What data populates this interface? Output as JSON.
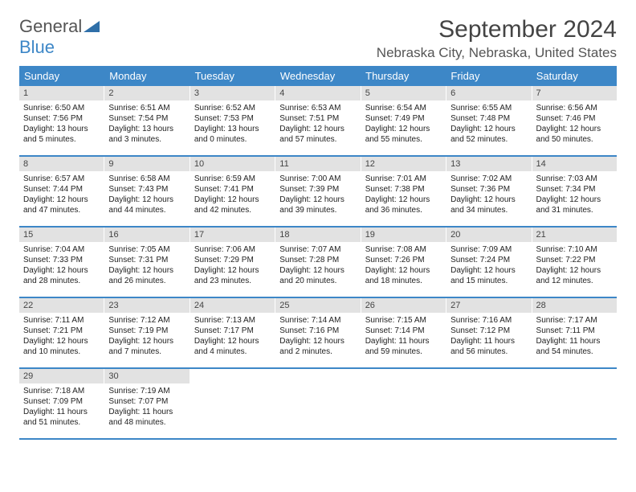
{
  "brand": {
    "g": "General",
    "b": "Blue"
  },
  "title": "September 2024",
  "location": "Nebraska City, Nebraska, United States",
  "colors": {
    "accent": "#3d87c7",
    "dayHeaderBg": "#e2e2e2"
  },
  "dow": [
    "Sunday",
    "Monday",
    "Tuesday",
    "Wednesday",
    "Thursday",
    "Friday",
    "Saturday"
  ],
  "weeks": [
    [
      {
        "n": "1",
        "sr": "Sunrise: 6:50 AM",
        "ss": "Sunset: 7:56 PM",
        "d1": "Daylight: 13 hours",
        "d2": "and 5 minutes."
      },
      {
        "n": "2",
        "sr": "Sunrise: 6:51 AM",
        "ss": "Sunset: 7:54 PM",
        "d1": "Daylight: 13 hours",
        "d2": "and 3 minutes."
      },
      {
        "n": "3",
        "sr": "Sunrise: 6:52 AM",
        "ss": "Sunset: 7:53 PM",
        "d1": "Daylight: 13 hours",
        "d2": "and 0 minutes."
      },
      {
        "n": "4",
        "sr": "Sunrise: 6:53 AM",
        "ss": "Sunset: 7:51 PM",
        "d1": "Daylight: 12 hours",
        "d2": "and 57 minutes."
      },
      {
        "n": "5",
        "sr": "Sunrise: 6:54 AM",
        "ss": "Sunset: 7:49 PM",
        "d1": "Daylight: 12 hours",
        "d2": "and 55 minutes."
      },
      {
        "n": "6",
        "sr": "Sunrise: 6:55 AM",
        "ss": "Sunset: 7:48 PM",
        "d1": "Daylight: 12 hours",
        "d2": "and 52 minutes."
      },
      {
        "n": "7",
        "sr": "Sunrise: 6:56 AM",
        "ss": "Sunset: 7:46 PM",
        "d1": "Daylight: 12 hours",
        "d2": "and 50 minutes."
      }
    ],
    [
      {
        "n": "8",
        "sr": "Sunrise: 6:57 AM",
        "ss": "Sunset: 7:44 PM",
        "d1": "Daylight: 12 hours",
        "d2": "and 47 minutes."
      },
      {
        "n": "9",
        "sr": "Sunrise: 6:58 AM",
        "ss": "Sunset: 7:43 PM",
        "d1": "Daylight: 12 hours",
        "d2": "and 44 minutes."
      },
      {
        "n": "10",
        "sr": "Sunrise: 6:59 AM",
        "ss": "Sunset: 7:41 PM",
        "d1": "Daylight: 12 hours",
        "d2": "and 42 minutes."
      },
      {
        "n": "11",
        "sr": "Sunrise: 7:00 AM",
        "ss": "Sunset: 7:39 PM",
        "d1": "Daylight: 12 hours",
        "d2": "and 39 minutes."
      },
      {
        "n": "12",
        "sr": "Sunrise: 7:01 AM",
        "ss": "Sunset: 7:38 PM",
        "d1": "Daylight: 12 hours",
        "d2": "and 36 minutes."
      },
      {
        "n": "13",
        "sr": "Sunrise: 7:02 AM",
        "ss": "Sunset: 7:36 PM",
        "d1": "Daylight: 12 hours",
        "d2": "and 34 minutes."
      },
      {
        "n": "14",
        "sr": "Sunrise: 7:03 AM",
        "ss": "Sunset: 7:34 PM",
        "d1": "Daylight: 12 hours",
        "d2": "and 31 minutes."
      }
    ],
    [
      {
        "n": "15",
        "sr": "Sunrise: 7:04 AM",
        "ss": "Sunset: 7:33 PM",
        "d1": "Daylight: 12 hours",
        "d2": "and 28 minutes."
      },
      {
        "n": "16",
        "sr": "Sunrise: 7:05 AM",
        "ss": "Sunset: 7:31 PM",
        "d1": "Daylight: 12 hours",
        "d2": "and 26 minutes."
      },
      {
        "n": "17",
        "sr": "Sunrise: 7:06 AM",
        "ss": "Sunset: 7:29 PM",
        "d1": "Daylight: 12 hours",
        "d2": "and 23 minutes."
      },
      {
        "n": "18",
        "sr": "Sunrise: 7:07 AM",
        "ss": "Sunset: 7:28 PM",
        "d1": "Daylight: 12 hours",
        "d2": "and 20 minutes."
      },
      {
        "n": "19",
        "sr": "Sunrise: 7:08 AM",
        "ss": "Sunset: 7:26 PM",
        "d1": "Daylight: 12 hours",
        "d2": "and 18 minutes."
      },
      {
        "n": "20",
        "sr": "Sunrise: 7:09 AM",
        "ss": "Sunset: 7:24 PM",
        "d1": "Daylight: 12 hours",
        "d2": "and 15 minutes."
      },
      {
        "n": "21",
        "sr": "Sunrise: 7:10 AM",
        "ss": "Sunset: 7:22 PM",
        "d1": "Daylight: 12 hours",
        "d2": "and 12 minutes."
      }
    ],
    [
      {
        "n": "22",
        "sr": "Sunrise: 7:11 AM",
        "ss": "Sunset: 7:21 PM",
        "d1": "Daylight: 12 hours",
        "d2": "and 10 minutes."
      },
      {
        "n": "23",
        "sr": "Sunrise: 7:12 AM",
        "ss": "Sunset: 7:19 PM",
        "d1": "Daylight: 12 hours",
        "d2": "and 7 minutes."
      },
      {
        "n": "24",
        "sr": "Sunrise: 7:13 AM",
        "ss": "Sunset: 7:17 PM",
        "d1": "Daylight: 12 hours",
        "d2": "and 4 minutes."
      },
      {
        "n": "25",
        "sr": "Sunrise: 7:14 AM",
        "ss": "Sunset: 7:16 PM",
        "d1": "Daylight: 12 hours",
        "d2": "and 2 minutes."
      },
      {
        "n": "26",
        "sr": "Sunrise: 7:15 AM",
        "ss": "Sunset: 7:14 PM",
        "d1": "Daylight: 11 hours",
        "d2": "and 59 minutes."
      },
      {
        "n": "27",
        "sr": "Sunrise: 7:16 AM",
        "ss": "Sunset: 7:12 PM",
        "d1": "Daylight: 11 hours",
        "d2": "and 56 minutes."
      },
      {
        "n": "28",
        "sr": "Sunrise: 7:17 AM",
        "ss": "Sunset: 7:11 PM",
        "d1": "Daylight: 11 hours",
        "d2": "and 54 minutes."
      }
    ],
    [
      {
        "n": "29",
        "sr": "Sunrise: 7:18 AM",
        "ss": "Sunset: 7:09 PM",
        "d1": "Daylight: 11 hours",
        "d2": "and 51 minutes."
      },
      {
        "n": "30",
        "sr": "Sunrise: 7:19 AM",
        "ss": "Sunset: 7:07 PM",
        "d1": "Daylight: 11 hours",
        "d2": "and 48 minutes."
      },
      {
        "empty": true
      },
      {
        "empty": true
      },
      {
        "empty": true
      },
      {
        "empty": true
      },
      {
        "empty": true
      }
    ]
  ]
}
